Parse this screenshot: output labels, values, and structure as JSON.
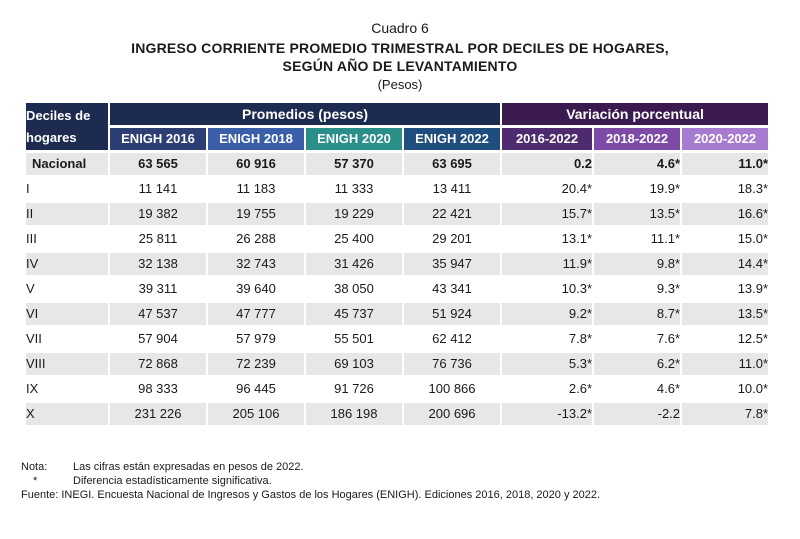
{
  "caption": {
    "number": "Cuadro 6",
    "title_line1": "Ingreso corriente promedio trimestral por deciles de hogares,",
    "title_line2": "según año de levantamiento",
    "units": "(Pesos)"
  },
  "colors": {
    "promedios_header": "#1c2b4f",
    "variacion_header": "#3a1a4f",
    "enigh_2016": "#2c3e73",
    "enigh_2018": "#3a5fa8",
    "enigh_2020": "#2a8f88",
    "enigh_2022": "#1f4d7d",
    "var_2016_2022": "#4e2a6e",
    "var_2018_2022": "#7e4aa8",
    "var_2020_2022": "#a77bd0",
    "row_shade": "#e7e7e7"
  },
  "table": {
    "corner_label": "Deciles de hogares",
    "group_promedios": "Promedios (pesos)",
    "group_variacion": "Variación porcentual",
    "columns": [
      "ENIGH 2016",
      "ENIGH 2018",
      "ENIGH 2020",
      "ENIGH 2022",
      "2016-2022",
      "2018-2022",
      "2020-2022"
    ],
    "rows": [
      {
        "label": "Nacional",
        "values": [
          "63 565",
          "60 916",
          "57 370",
          "63 695",
          "0.2",
          "4.6*",
          "11.0*"
        ]
      },
      {
        "label": "I",
        "values": [
          "11 141",
          "11 183",
          "11 333",
          "13 411",
          "20.4*",
          "19.9*",
          "18.3*"
        ]
      },
      {
        "label": "II",
        "values": [
          "19 382",
          "19 755",
          "19 229",
          "22 421",
          "15.7*",
          "13.5*",
          "16.6*"
        ]
      },
      {
        "label": "III",
        "values": [
          "25 811",
          "26 288",
          "25 400",
          "29 201",
          "13.1*",
          "11.1*",
          "15.0*"
        ]
      },
      {
        "label": "IV",
        "values": [
          "32 138",
          "32 743",
          "31 426",
          "35 947",
          "11.9*",
          "9.8*",
          "14.4*"
        ]
      },
      {
        "label": "V",
        "values": [
          "39 311",
          "39 640",
          "38 050",
          "43 341",
          "10.3*",
          "9.3*",
          "13.9*"
        ]
      },
      {
        "label": "VI",
        "values": [
          "47 537",
          "47 777",
          "45 737",
          "51 924",
          "9.2*",
          "8.7*",
          "13.5*"
        ]
      },
      {
        "label": "VII",
        "values": [
          "57 904",
          "57 979",
          "55 501",
          "62 412",
          "7.8*",
          "7.6*",
          "12.5*"
        ]
      },
      {
        "label": "VIII",
        "values": [
          "72 868",
          "72 239",
          "69 103",
          "76 736",
          "5.3*",
          "6.2*",
          "11.0*"
        ]
      },
      {
        "label": "IX",
        "values": [
          "98 333",
          "96 445",
          "91 726",
          "100 866",
          "2.6*",
          "4.6*",
          "10.0*"
        ]
      },
      {
        "label": "X",
        "values": [
          "231 226",
          "205 106",
          "186 198",
          "200 696",
          "-13.2*",
          "-2.2",
          "7.8*"
        ]
      }
    ]
  },
  "notes": {
    "nota_label": "Nota:",
    "nota_text": "Las cifras están expresadas en pesos de 2022.",
    "asterisk_label": "*",
    "asterisk_text": "Diferencia estadísticamente significativa.",
    "fuente": "Fuente: INEGI. Encuesta Nacional de Ingresos y Gastos de los Hogares (ENIGH). Ediciones 2016, 2018, 2020 y 2022."
  }
}
